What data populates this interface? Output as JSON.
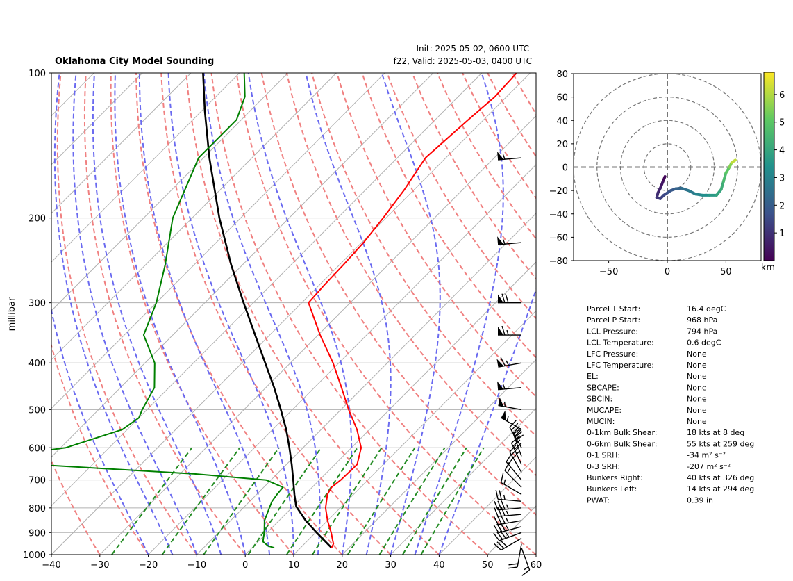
{
  "header": {
    "title": "Oklahoma City Model Sounding",
    "init": "Init: 2025-05-02, 0600 UTC",
    "valid": "f22, Valid: 2025-05-03, 0400 UTC"
  },
  "chart_data": [
    {
      "type": "line",
      "name": "skewt",
      "ylabel": "millibar",
      "xlabel": "",
      "xlim": [
        -40,
        60
      ],
      "ylim": [
        1000,
        100
      ],
      "y_scale": "log",
      "grid": true,
      "x_ticks": [
        -40,
        -30,
        -20,
        -10,
        0,
        10,
        20,
        30,
        40,
        50,
        60
      ],
      "y_ticks": [
        100,
        200,
        300,
        400,
        500,
        600,
        700,
        800,
        900,
        1000
      ],
      "x_tick_labels": [
        "−40",
        "−30",
        "−20",
        "−10",
        "0",
        "10",
        "20",
        "30",
        "40",
        "50",
        "60"
      ],
      "y_tick_labels": [
        "100",
        "200",
        "300",
        "400",
        "500",
        "600",
        "700",
        "800",
        "900",
        "1000"
      ],
      "colors": {
        "temperature": "#ff0000",
        "dewpoint": "#008000",
        "parcel": "#000000",
        "dry_adiabat": "#f08080",
        "moist_adiabat": "#6a6af0",
        "mixing_ratio": "#228b22",
        "isotherm": "#b0b0b0"
      },
      "temperature": [
        {
          "p": 968,
          "t": 16.4
        },
        {
          "p": 950,
          "t": 16.0
        },
        {
          "p": 925,
          "t": 14.6
        },
        {
          "p": 900,
          "t": 13.2
        },
        {
          "p": 850,
          "t": 10.0
        },
        {
          "p": 800,
          "t": 7.0
        },
        {
          "p": 750,
          "t": 4.6
        },
        {
          "p": 725,
          "t": 4.0
        },
        {
          "p": 700,
          "t": 4.4
        },
        {
          "p": 650,
          "t": 4.6
        },
        {
          "p": 600,
          "t": 2.0
        },
        {
          "p": 550,
          "t": -2.6
        },
        {
          "p": 500,
          "t": -8.4
        },
        {
          "p": 450,
          "t": -14.4
        },
        {
          "p": 400,
          "t": -21.2
        },
        {
          "p": 350,
          "t": -29.6
        },
        {
          "p": 300,
          "t": -38.6
        },
        {
          "p": 275,
          "t": -39.0
        },
        {
          "p": 250,
          "t": -39.2
        },
        {
          "p": 225,
          "t": -39.6
        },
        {
          "p": 200,
          "t": -40.6
        },
        {
          "p": 175,
          "t": -42.0
        },
        {
          "p": 150,
          "t": -44.2
        },
        {
          "p": 125,
          "t": -43.2
        },
        {
          "p": 112,
          "t": -42.4
        },
        {
          "p": 100,
          "t": -42.8
        }
      ],
      "dewpoint": [
        {
          "p": 968,
          "t": 4.6
        },
        {
          "p": 960,
          "t": 3.0
        },
        {
          "p": 940,
          "t": 1.0
        },
        {
          "p": 925,
          "t": 0.4
        },
        {
          "p": 900,
          "t": -0.6
        },
        {
          "p": 850,
          "t": -3.0
        },
        {
          "p": 800,
          "t": -4.6
        },
        {
          "p": 775,
          "t": -5.4
        },
        {
          "p": 750,
          "t": -5.8
        },
        {
          "p": 725,
          "t": -6.0
        },
        {
          "p": 700,
          "t": -11.0
        },
        {
          "p": 680,
          "t": -27.0
        },
        {
          "p": 650,
          "t": -62.0
        },
        {
          "p": 620,
          "t": -68.0
        },
        {
          "p": 600,
          "t": -59.0
        },
        {
          "p": 550,
          "t": -51.0
        },
        {
          "p": 520,
          "t": -50.0
        },
        {
          "p": 500,
          "t": -51.0
        },
        {
          "p": 450,
          "t": -53.0
        },
        {
          "p": 400,
          "t": -58.0
        },
        {
          "p": 350,
          "t": -66.0
        },
        {
          "p": 300,
          "t": -70.0
        },
        {
          "p": 250,
          "t": -76.0
        },
        {
          "p": 200,
          "t": -84.0
        },
        {
          "p": 150,
          "t": -91.0
        },
        {
          "p": 125,
          "t": -91.0
        },
        {
          "p": 112,
          "t": -94.0
        },
        {
          "p": 100,
          "t": -99.0
        }
      ],
      "parcel": [
        {
          "p": 968,
          "t": 16.4
        },
        {
          "p": 900,
          "t": 10.2
        },
        {
          "p": 850,
          "t": 5.5
        },
        {
          "p": 794,
          "t": 0.6
        },
        {
          "p": 750,
          "t": -2.2
        },
        {
          "p": 700,
          "t": -5.4
        },
        {
          "p": 650,
          "t": -8.9
        },
        {
          "p": 600,
          "t": -12.8
        },
        {
          "p": 550,
          "t": -17.2
        },
        {
          "p": 500,
          "t": -22.4
        },
        {
          "p": 450,
          "t": -28.3
        },
        {
          "p": 400,
          "t": -35.2
        },
        {
          "p": 350,
          "t": -43.0
        },
        {
          "p": 300,
          "t": -52.0
        },
        {
          "p": 250,
          "t": -62.4
        },
        {
          "p": 200,
          "t": -74.4
        },
        {
          "p": 150,
          "t": -88.8
        },
        {
          "p": 120,
          "t": -99.3
        },
        {
          "p": 100,
          "t": -107.5
        }
      ],
      "wind_barbs": [
        {
          "p": 968,
          "dir": 160,
          "speed_kts": 15
        },
        {
          "p": 950,
          "dir": 190,
          "speed_kts": 20
        },
        {
          "p": 925,
          "dir": 240,
          "speed_kts": 30
        },
        {
          "p": 900,
          "dir": 250,
          "speed_kts": 35
        },
        {
          "p": 875,
          "dir": 255,
          "speed_kts": 35
        },
        {
          "p": 850,
          "dir": 260,
          "speed_kts": 35
        },
        {
          "p": 825,
          "dir": 265,
          "speed_kts": 35
        },
        {
          "p": 800,
          "dir": 265,
          "speed_kts": 35
        },
        {
          "p": 775,
          "dir": 275,
          "speed_kts": 25
        },
        {
          "p": 750,
          "dir": 300,
          "speed_kts": 15
        },
        {
          "p": 725,
          "dir": 315,
          "speed_kts": 15
        },
        {
          "p": 700,
          "dir": 320,
          "speed_kts": 20
        },
        {
          "p": 675,
          "dir": 330,
          "speed_kts": 30
        },
        {
          "p": 650,
          "dir": 335,
          "speed_kts": 30
        },
        {
          "p": 625,
          "dir": 340,
          "speed_kts": 30
        },
        {
          "p": 600,
          "dir": 330,
          "speed_kts": 45
        },
        {
          "p": 550,
          "dir": 300,
          "speed_kts": 55
        },
        {
          "p": 500,
          "dir": 280,
          "speed_kts": 55
        },
        {
          "p": 450,
          "dir": 265,
          "speed_kts": 55
        },
        {
          "p": 400,
          "dir": 260,
          "speed_kts": 65
        },
        {
          "p": 350,
          "dir": 270,
          "speed_kts": 65
        },
        {
          "p": 300,
          "dir": 270,
          "speed_kts": 70
        },
        {
          "p": 225,
          "dir": 265,
          "speed_kts": 55
        },
        {
          "p": 150,
          "dir": 265,
          "speed_kts": 55
        }
      ]
    },
    {
      "type": "line",
      "name": "hodograph",
      "xlim": [
        -80,
        80
      ],
      "ylim": [
        -80,
        80
      ],
      "x_ticks": [
        -50,
        0,
        50
      ],
      "y_ticks": [
        -80,
        -60,
        -40,
        -20,
        0,
        20,
        40,
        60,
        80
      ],
      "x_tick_labels": [
        "−50",
        "0",
        "50"
      ],
      "y_tick_labels": [
        "−80",
        "−60",
        "−40",
        "−20",
        "0",
        "20",
        "40",
        "60",
        "80"
      ],
      "range_rings": [
        20,
        40,
        60,
        80
      ],
      "colorbar_label": "km",
      "colorbar_ticks": [
        1,
        2,
        3,
        4,
        5,
        6
      ],
      "colorbar_range": [
        0,
        6.8
      ],
      "colors": [
        "#440154",
        "#3b528b",
        "#21918c",
        "#5ec962",
        "#fde725"
      ],
      "points": [
        {
          "u": -2,
          "v": -8,
          "h": 0.0
        },
        {
          "u": -4,
          "v": -13,
          "h": 0.3
        },
        {
          "u": -6,
          "v": -18,
          "h": 0.6
        },
        {
          "u": -8,
          "v": -22,
          "h": 0.8
        },
        {
          "u": -9,
          "v": -26,
          "h": 1.0
        },
        {
          "u": -6,
          "v": -27,
          "h": 1.2
        },
        {
          "u": -3,
          "v": -24,
          "h": 1.4
        },
        {
          "u": 0,
          "v": -22,
          "h": 1.6
        },
        {
          "u": 3,
          "v": -20,
          "h": 1.8
        },
        {
          "u": 7,
          "v": -18.5,
          "h": 2.0
        },
        {
          "u": 12,
          "v": -18,
          "h": 2.3
        },
        {
          "u": 18,
          "v": -20,
          "h": 2.6
        },
        {
          "u": 24,
          "v": -23,
          "h": 2.9
        },
        {
          "u": 30,
          "v": -24,
          "h": 3.2
        },
        {
          "u": 36,
          "v": -24,
          "h": 3.5
        },
        {
          "u": 42,
          "v": -24,
          "h": 3.8
        },
        {
          "u": 46,
          "v": -19,
          "h": 4.1
        },
        {
          "u": 48,
          "v": -12,
          "h": 4.4
        },
        {
          "u": 50,
          "v": -5,
          "h": 4.8
        },
        {
          "u": 53,
          "v": 0,
          "h": 5.2
        },
        {
          "u": 55,
          "v": 4,
          "h": 5.8
        },
        {
          "u": 58,
          "v": 6,
          "h": 6.5
        }
      ]
    }
  ],
  "stats": [
    {
      "label": "Parcel T Start:",
      "value": "16.4 degC"
    },
    {
      "label": "Parcel P Start:",
      "value": "968 hPa"
    },
    {
      "label": "LCL Pressure:",
      "value": "794 hPa"
    },
    {
      "label": "LCL Temperature:",
      "value": "0.6 degC"
    },
    {
      "label": "LFC Pressure:",
      "value": "None"
    },
    {
      "label": "LFC Temperature:",
      "value": "None"
    },
    {
      "label": "EL:",
      "value": "None"
    },
    {
      "label": "SBCAPE:",
      "value": "None"
    },
    {
      "label": "SBCIN:",
      "value": "None"
    },
    {
      "label": "MUCAPE:",
      "value": "None"
    },
    {
      "label": "MUCIN:",
      "value": "None"
    },
    {
      "label": "0-1km Bulk Shear:",
      "value": "18 kts at 8 deg"
    },
    {
      "label": "0-6km Bulk Shear:",
      "value": "55 kts at 259 deg"
    },
    {
      "label": "0-1 SRH:",
      "value": "-34 m² s⁻²"
    },
    {
      "label": "0-3 SRH:",
      "value": "-207 m² s⁻²"
    },
    {
      "label": "Bunkers Right:",
      "value": "40 kts at 326 deg"
    },
    {
      "label": "Bunkers Left:",
      "value": "14 kts at 294 deg"
    },
    {
      "label": "PWAT:",
      "value": "0.39 in"
    }
  ]
}
